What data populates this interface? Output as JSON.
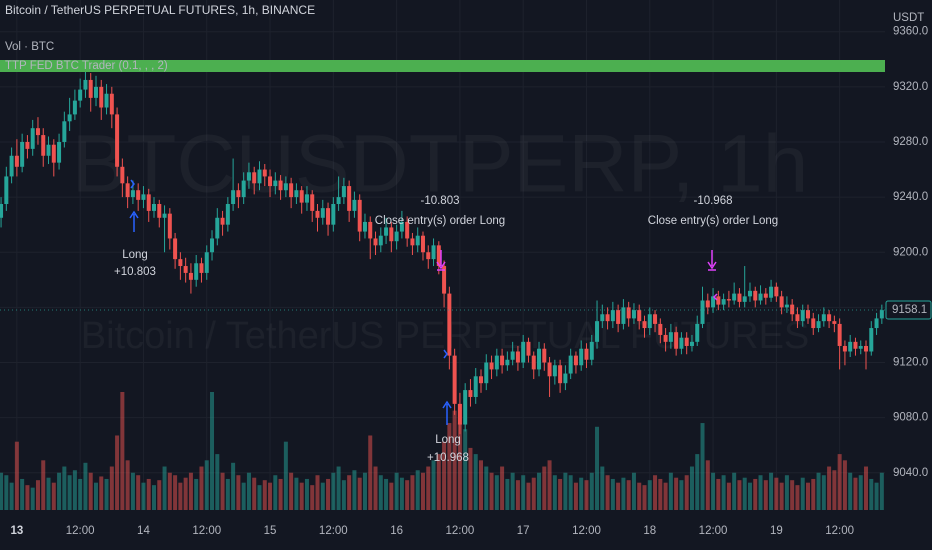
{
  "chart_data": {
    "type": "candlestick",
    "title": "Bitcoin / TetherUS PERPETUAL FUTURES, 1h, BINANCE",
    "indicators": [
      "Vol · BTC",
      "TTP FED BTC Trader (0.1, , , 2)"
    ],
    "watermark": [
      "BTCUSDTPERP, 1h",
      "Bitcoin / TetherUS PERPETUAL FUTURES"
    ],
    "y_axis_label": "USDT",
    "up_color": "#26a69a",
    "down_color": "#ef5350",
    "grid": true,
    "last_price": 9158.1,
    "xlim": [
      -3.2,
      164.6
    ],
    "ylim": [
      9013,
      9383
    ],
    "xticks": [
      {
        "value": 0,
        "label": "13"
      },
      {
        "value": 12,
        "label": "12:00"
      },
      {
        "value": 24,
        "label": "14"
      },
      {
        "value": 36,
        "label": "12:00"
      },
      {
        "value": 48,
        "label": "15"
      },
      {
        "value": 60,
        "label": "12:00"
      },
      {
        "value": 72,
        "label": "16"
      },
      {
        "value": 84,
        "label": "12:00"
      },
      {
        "value": 96,
        "label": "17"
      },
      {
        "value": 108,
        "label": "12:00"
      },
      {
        "value": 120,
        "label": "18"
      },
      {
        "value": 132,
        "label": "12:00"
      },
      {
        "value": 144,
        "label": "19"
      },
      {
        "value": 156,
        "label": "12:00"
      }
    ],
    "yticks": [
      {
        "value": 9040,
        "label": "9040.0"
      },
      {
        "value": 9080,
        "label": "9080.0"
      },
      {
        "value": 9120,
        "label": "9120.0"
      },
      {
        "value": 9160,
        "label": "9160.0"
      },
      {
        "value": 9200,
        "label": "9200.0"
      },
      {
        "value": 9240,
        "label": "9240.0"
      },
      {
        "value": 9280,
        "label": "9280.0"
      },
      {
        "value": 9320,
        "label": "9320.0"
      },
      {
        "value": 9360,
        "label": "9360.0"
      }
    ],
    "annotations": [
      [
        "Long",
        "+10.803"
      ],
      [
        "-10.803",
        "Close entry(s) order Long"
      ],
      [
        "-10.968",
        "Close entry(s) order Long"
      ],
      [
        "Long",
        "+10.968"
      ]
    ],
    "x": [
      -3,
      -2,
      -1,
      0,
      1,
      2,
      3,
      4,
      5,
      6,
      7,
      8,
      9,
      10,
      11,
      12,
      13,
      14,
      15,
      16,
      17,
      18,
      19,
      20,
      21,
      22,
      23,
      24,
      25,
      26,
      27,
      28,
      29,
      30,
      31,
      32,
      33,
      34,
      35,
      36,
      37,
      38,
      39,
      40,
      41,
      42,
      43,
      44,
      45,
      46,
      47,
      48,
      49,
      50,
      51,
      52,
      53,
      54,
      55,
      56,
      57,
      58,
      59,
      60,
      61,
      62,
      63,
      64,
      65,
      66,
      67,
      68,
      69,
      70,
      71,
      72,
      73,
      74,
      75,
      76,
      77,
      78,
      79,
      80,
      81,
      82,
      83,
      84,
      85,
      86,
      87,
      88,
      89,
      90,
      91,
      92,
      93,
      94,
      95,
      96,
      97,
      98,
      99,
      100,
      101,
      102,
      103,
      104,
      105,
      106,
      107,
      108,
      109,
      110,
      111,
      112,
      113,
      114,
      115,
      116,
      117,
      118,
      119,
      120,
      121,
      122,
      123,
      124,
      125,
      126,
      127,
      128,
      129,
      130,
      131,
      132,
      133,
      134,
      135,
      136,
      137,
      138,
      139,
      140,
      141,
      142,
      143,
      144,
      145,
      146,
      147,
      148,
      149,
      150,
      151,
      152,
      153,
      154,
      155,
      156,
      157,
      158,
      159,
      160,
      161,
      162,
      163,
      164
    ],
    "open": [
      9225,
      9235,
      9255,
      9270,
      9262,
      9280,
      9275,
      9290,
      9285,
      9270,
      9278,
      9265,
      9280,
      9295,
      9300,
      9310,
      9318,
      9325,
      9312,
      9320,
      9305,
      9315,
      9300,
      9262,
      9250,
      9240,
      9245,
      9238,
      9242,
      9230,
      9235,
      9225,
      9228,
      9210,
      9195,
      9190,
      9185,
      9180,
      9192,
      9185,
      9200,
      9210,
      9225,
      9220,
      9235,
      9245,
      9240,
      9252,
      9258,
      9250,
      9260,
      9255,
      9248,
      9252,
      9245,
      9250,
      9240,
      9245,
      9236,
      9242,
      9230,
      9225,
      9232,
      9220,
      9235,
      9240,
      9248,
      9230,
      9238,
      9215,
      9222,
      9210,
      9205,
      9212,
      9218,
      9208,
      9215,
      9222,
      9210,
      9205,
      9212,
      9200,
      9195,
      9205,
      9190,
      9170,
      9125,
      9090,
      9075,
      9100,
      9095,
      9110,
      9105,
      9120,
      9115,
      9125,
      9118,
      9122,
      9128,
      9120,
      9135,
      9125,
      9115,
      9130,
      9120,
      9110,
      9118,
      9105,
      9112,
      9125,
      9118,
      9130,
      9122,
      9135,
      9150,
      9155,
      9150,
      9158,
      9148,
      9160,
      9152,
      9158,
      9150,
      9145,
      9155,
      9148,
      9140,
      9135,
      9142,
      9130,
      9138,
      9132,
      9135,
      9148,
      9165,
      9160,
      9168,
      9162,
      9166,
      9165,
      9170,
      9164,
      9168,
      9172,
      9165,
      9170,
      9167,
      9175,
      9168,
      9160,
      9162,
      9155,
      9150,
      9158,
      9152,
      9145,
      9150,
      9155,
      9150,
      9148,
      9132,
      9128,
      9135,
      9130,
      9132,
      9128,
      9145,
      9152
    ],
    "high": [
      9240,
      9262,
      9276,
      9282,
      9286,
      9285,
      9296,
      9298,
      9290,
      9284,
      9282,
      9286,
      9302,
      9312,
      9318,
      9326,
      9335,
      9330,
      9328,
      9325,
      9322,
      9320,
      9305,
      9268,
      9255,
      9252,
      9250,
      9248,
      9246,
      9240,
      9238,
      9234,
      9232,
      9214,
      9200,
      9196,
      9192,
      9198,
      9196,
      9205,
      9216,
      9232,
      9230,
      9240,
      9268,
      9250,
      9258,
      9265,
      9262,
      9266,
      9264,
      9260,
      9258,
      9256,
      9255,
      9254,
      9250,
      9248,
      9248,
      9245,
      9235,
      9238,
      9236,
      9240,
      9255,
      9254,
      9252,
      9244,
      9242,
      9228,
      9226,
      9215,
      9218,
      9225,
      9222,
      9220,
      9230,
      9226,
      9214,
      9218,
      9215,
      9205,
      9210,
      9208,
      9194,
      9175,
      9130,
      9098,
      9105,
      9108,
      9116,
      9115,
      9126,
      9125,
      9130,
      9130,
      9128,
      9135,
      9132,
      9140,
      9138,
      9128,
      9135,
      9134,
      9124,
      9122,
      9122,
      9118,
      9130,
      9128,
      9136,
      9134,
      9140,
      9165,
      9162,
      9160,
      9164,
      9162,
      9166,
      9164,
      9163,
      9162,
      9154,
      9160,
      9158,
      9152,
      9145,
      9148,
      9146,
      9142,
      9142,
      9140,
      9154,
      9175,
      9170,
      9174,
      9172,
      9170,
      9172,
      9178,
      9174,
      9190,
      9178,
      9175,
      9176,
      9174,
      9180,
      9178,
      9172,
      9168,
      9166,
      9160,
      9162,
      9162,
      9156,
      9155,
      9160,
      9158,
      9154,
      9152,
      9136,
      9140,
      9138,
      9136,
      9136,
      9150,
      9156,
      9162
    ],
    "low": [
      9218,
      9230,
      9250,
      9255,
      9258,
      9268,
      9270,
      9278,
      9262,
      9264,
      9255,
      9260,
      9276,
      9288,
      9296,
      9305,
      9312,
      9302,
      9306,
      9296,
      9300,
      9290,
      9255,
      9240,
      9232,
      9235,
      9230,
      9232,
      9222,
      9225,
      9218,
      9200,
      9202,
      9188,
      9180,
      9178,
      9170,
      9175,
      9178,
      9180,
      9194,
      9205,
      9212,
      9215,
      9230,
      9232,
      9235,
      9246,
      9242,
      9245,
      9248,
      9240,
      9242,
      9238,
      9240,
      9232,
      9235,
      9228,
      9230,
      9222,
      9215,
      9220,
      9212,
      9215,
      9230,
      9235,
      9222,
      9225,
      9208,
      9210,
      9195,
      9198,
      9200,
      9206,
      9200,
      9202,
      9210,
      9204,
      9198,
      9200,
      9194,
      9188,
      9190,
      9184,
      9160,
      9115,
      9082,
      9068,
      9070,
      9088,
      9090,
      9098,
      9100,
      9108,
      9110,
      9112,
      9114,
      9118,
      9114,
      9116,
      9120,
      9108,
      9110,
      9114,
      9095,
      9104,
      9098,
      9100,
      9108,
      9112,
      9114,
      9116,
      9118,
      9130,
      9145,
      9144,
      9145,
      9142,
      9144,
      9146,
      9148,
      9144,
      9138,
      9140,
      9142,
      9134,
      9128,
      9130,
      9125,
      9126,
      9126,
      9128,
      9132,
      9145,
      9155,
      9156,
      9158,
      9158,
      9160,
      9162,
      9160,
      9160,
      9164,
      9160,
      9162,
      9162,
      9164,
      9164,
      9155,
      9156,
      9150,
      9145,
      9146,
      9148,
      9140,
      9142,
      9146,
      9145,
      9142,
      9115,
      9118,
      9124,
      9125,
      9126,
      9115,
      9125,
      9140,
      9148
    ],
    "close": [
      9235,
      9255,
      9270,
      9262,
      9280,
      9275,
      9290,
      9285,
      9270,
      9278,
      9265,
      9280,
      9295,
      9300,
      9310,
      9318,
      9325,
      9312,
      9320,
      9305,
      9315,
      9300,
      9262,
      9250,
      9240,
      9245,
      9238,
      9242,
      9230,
      9235,
      9225,
      9228,
      9210,
      9195,
      9190,
      9185,
      9180,
      9192,
      9185,
      9200,
      9210,
      9225,
      9220,
      9235,
      9245,
      9240,
      9252,
      9258,
      9250,
      9260,
      9255,
      9248,
      9252,
      9245,
      9250,
      9240,
      9245,
      9236,
      9242,
      9230,
      9225,
      9232,
      9220,
      9235,
      9240,
      9248,
      9230,
      9238,
      9215,
      9222,
      9210,
      9205,
      9212,
      9218,
      9208,
      9215,
      9222,
      9210,
      9205,
      9212,
      9200,
      9195,
      9205,
      9190,
      9170,
      9125,
      9090,
      9075,
      9100,
      9095,
      9110,
      9105,
      9120,
      9115,
      9125,
      9118,
      9122,
      9128,
      9120,
      9135,
      9125,
      9115,
      9130,
      9120,
      9110,
      9118,
      9105,
      9112,
      9125,
      9118,
      9130,
      9122,
      9135,
      9150,
      9155,
      9150,
      9158,
      9148,
      9160,
      9152,
      9158,
      9150,
      9145,
      9155,
      9148,
      9140,
      9135,
      9142,
      9130,
      9138,
      9132,
      9135,
      9148,
      9165,
      9160,
      9168,
      9162,
      9166,
      9165,
      9170,
      9164,
      9168,
      9172,
      9165,
      9170,
      9167,
      9175,
      9168,
      9160,
      9162,
      9155,
      9150,
      9158,
      9152,
      9145,
      9150,
      9155,
      9150,
      9148,
      9132,
      9128,
      9135,
      9130,
      9132,
      9128,
      9145,
      9152,
      9158
    ],
    "volume": [
      30,
      28,
      22,
      55,
      25,
      20,
      18,
      24,
      40,
      26,
      22,
      30,
      35,
      28,
      32,
      25,
      38,
      30,
      22,
      27,
      25,
      35,
      60,
      95,
      40,
      30,
      28,
      22,
      25,
      20,
      24,
      35,
      30,
      28,
      22,
      26,
      30,
      25,
      35,
      40,
      95,
      45,
      30,
      25,
      38,
      28,
      22,
      30,
      26,
      20,
      24,
      22,
      28,
      25,
      55,
      30,
      26,
      22,
      25,
      20,
      28,
      22,
      25,
      30,
      35,
      24,
      28,
      32,
      26,
      30,
      60,
      35,
      28,
      25,
      22,
      30,
      26,
      24,
      28,
      32,
      30,
      35,
      40,
      45,
      55,
      70,
      80,
      70,
      65,
      50,
      45,
      40,
      35,
      30,
      28,
      35,
      25,
      30,
      24,
      28,
      22,
      26,
      30,
      35,
      40,
      28,
      25,
      30,
      28,
      22,
      26,
      24,
      30,
      67,
      35,
      28,
      25,
      22,
      26,
      24,
      30,
      22,
      20,
      24,
      28,
      25,
      22,
      30,
      26,
      24,
      28,
      35,
      45,
      70,
      40,
      30,
      25,
      28,
      22,
      30,
      24,
      26,
      22,
      25,
      28,
      24,
      30,
      26,
      22,
      28,
      24,
      20,
      26,
      22,
      25,
      30,
      28,
      35,
      32,
      45,
      40,
      30,
      26,
      28,
      35,
      25,
      22,
      30
    ]
  }
}
